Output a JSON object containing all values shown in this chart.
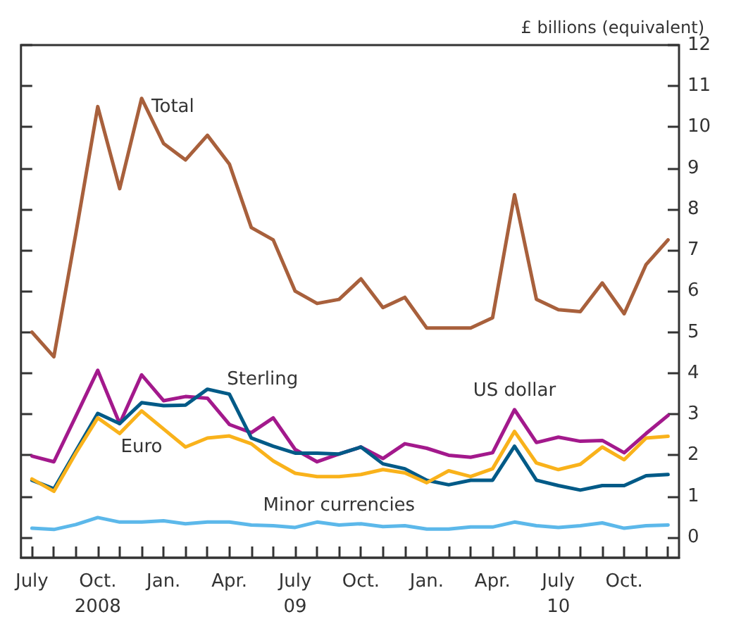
{
  "chart_data": {
    "type": "line",
    "ylabel": "£ billions (equivalent)",
    "categories": [
      "July",
      null,
      null,
      "Oct.\n2008",
      null,
      null,
      "Jan.",
      null,
      null,
      "Apr.",
      null,
      null,
      "July\n09",
      null,
      null,
      "Oct.",
      null,
      null,
      "Jan.",
      null,
      null,
      "Apr.",
      null,
      null,
      "July\n10",
      null,
      null,
      "Oct.",
      null,
      null
    ],
    "series": [
      {
        "name": "Total",
        "color": "#a8603c",
        "values": [
          5.0,
          4.4,
          7.4,
          10.5,
          8.5,
          10.7,
          9.6,
          9.2,
          9.8,
          9.1,
          7.55,
          7.25,
          6.0,
          5.7,
          5.8,
          6.3,
          5.6,
          5.85,
          5.1,
          5.1,
          5.1,
          5.35,
          8.35,
          5.8,
          5.55,
          5.5,
          6.2,
          5.45,
          6.65,
          7.25
        ]
      },
      {
        "name": "US dollar",
        "color": "#a3198c",
        "values": [
          1.98,
          1.84,
          2.95,
          4.07,
          2.77,
          3.96,
          3.33,
          3.43,
          3.39,
          2.75,
          2.55,
          2.91,
          2.14,
          1.84,
          2.03,
          2.2,
          1.92,
          2.28,
          2.17,
          2.0,
          1.95,
          2.06,
          3.11,
          2.31,
          2.44,
          2.34,
          2.36,
          2.06,
          2.53,
          2.97
        ]
      },
      {
        "name": "Sterling",
        "color": "#005a87",
        "values": [
          1.39,
          1.18,
          2.1,
          3.02,
          2.77,
          3.28,
          3.21,
          3.22,
          3.61,
          3.49,
          2.42,
          2.22,
          2.05,
          2.05,
          2.03,
          2.2,
          1.79,
          1.67,
          1.39,
          1.28,
          1.39,
          1.39,
          2.22,
          1.39,
          1.26,
          1.15,
          1.26,
          1.26,
          1.5,
          1.53
        ]
      },
      {
        "name": "Euro",
        "color": "#f9b21b",
        "values": [
          1.42,
          1.12,
          2.05,
          2.91,
          2.53,
          3.08,
          2.64,
          2.2,
          2.42,
          2.47,
          2.28,
          1.86,
          1.56,
          1.48,
          1.48,
          1.53,
          1.65,
          1.57,
          1.33,
          1.62,
          1.48,
          1.67,
          2.58,
          1.81,
          1.65,
          1.78,
          2.2,
          1.89,
          2.42,
          2.46
        ]
      },
      {
        "name": "Minor currencies",
        "color": "#5cb8ea",
        "values": [
          0.22,
          0.19,
          0.31,
          0.48,
          0.37,
          0.37,
          0.4,
          0.33,
          0.37,
          0.37,
          0.3,
          0.28,
          0.24,
          0.37,
          0.3,
          0.33,
          0.26,
          0.28,
          0.2,
          0.2,
          0.25,
          0.25,
          0.37,
          0.28,
          0.24,
          0.28,
          0.35,
          0.22,
          0.28,
          0.3
        ]
      }
    ],
    "ylim": [
      -0.5,
      12
    ],
    "yticks": [
      0,
      1,
      2,
      3,
      4,
      5,
      6,
      7,
      8,
      9,
      10,
      11,
      12
    ],
    "grid": false,
    "legend": false,
    "marker": "none",
    "line_style": "solid"
  }
}
